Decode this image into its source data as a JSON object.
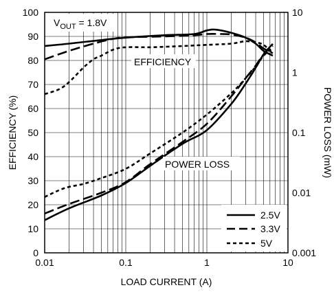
{
  "chart_data": {
    "type": "line",
    "annotation_main": "V",
    "annotation_sub": "OUT",
    "annotation_rest": " = 1.8V",
    "label_efficiency": "EFFICIENCY",
    "label_power_loss": "POWER LOSS",
    "xlabel": "LOAD CURRENT (A)",
    "ylabel_left": "EFFICIENCY (%)",
    "ylabel_right": "POWER LOSS (mW)",
    "xscale": "log",
    "xlim": [
      0.01,
      10
    ],
    "ylim_left": [
      0,
      100
    ],
    "yscale_right": "log",
    "ylim_right": [
      0.001,
      10
    ],
    "grid": true,
    "legend_position": "bottom-right",
    "x_ticks": [
      "0.01",
      "0.1",
      "1",
      "10"
    ],
    "y_left_ticks": [
      "0",
      "10",
      "20",
      "30",
      "40",
      "50",
      "60",
      "70",
      "80",
      "90",
      "100"
    ],
    "y_right_ticks": [
      "0.001",
      "0.01",
      "0.1",
      "1",
      "10"
    ],
    "legend": [
      {
        "label": "2.5V",
        "style": "solid"
      },
      {
        "label": "3.3V",
        "style": "long-dash"
      },
      {
        "label": "5V",
        "style": "short-dash"
      }
    ],
    "series": [
      {
        "name": "2.5V",
        "quantity": "efficiency",
        "axis": "left",
        "style": "solid",
        "x": [
          0.01,
          0.02,
          0.05,
          0.1,
          0.3,
          0.7,
          1.0,
          1.3,
          2.0,
          3.0,
          4.0,
          5.0,
          6.5
        ],
        "y": [
          86,
          87,
          88.5,
          89.5,
          90.5,
          91,
          92.5,
          92.8,
          91.5,
          89.5,
          87,
          84,
          82
        ]
      },
      {
        "name": "3.3V",
        "quantity": "efficiency",
        "axis": "left",
        "style": "long-dash",
        "x": [
          0.01,
          0.02,
          0.04,
          0.07,
          0.1,
          0.3,
          0.7,
          1.0,
          1.5,
          2.0,
          3.0,
          4.0,
          5.0,
          6.5
        ],
        "y": [
          80.5,
          84,
          87,
          89,
          89.6,
          90,
          90.5,
          91,
          91,
          90.8,
          89.5,
          87.5,
          85,
          83
        ]
      },
      {
        "name": "5V",
        "quantity": "efficiency",
        "axis": "left",
        "style": "short-dash",
        "x": [
          0.01,
          0.015,
          0.02,
          0.03,
          0.04,
          0.05,
          0.07,
          0.1,
          0.2,
          0.5,
          1.0,
          2.0,
          3.0,
          4.0,
          5.0,
          6.5
        ],
        "y": [
          66,
          68,
          71,
          77,
          80.5,
          82,
          84.5,
          85.5,
          85.5,
          86,
          86.5,
          87,
          88,
          87.5,
          86.5,
          83
        ]
      },
      {
        "name": "2.5V",
        "quantity": "power loss",
        "axis": "right",
        "style": "solid",
        "x": [
          0.01,
          0.02,
          0.05,
          0.1,
          0.2,
          0.5,
          1.0,
          2.0,
          3.0,
          4.0,
          5.0,
          6.5
        ],
        "y": [
          0.0035,
          0.0055,
          0.009,
          0.0145,
          0.028,
          0.065,
          0.11,
          0.3,
          0.65,
          1.2,
          2.0,
          3.0
        ]
      },
      {
        "name": "3.3V",
        "quantity": "power loss",
        "axis": "right",
        "style": "long-dash",
        "x": [
          0.01,
          0.02,
          0.05,
          0.1,
          0.2,
          0.5,
          1.0,
          2.0,
          3.0,
          4.0,
          5.0,
          6.5
        ],
        "y": [
          0.0045,
          0.0065,
          0.01,
          0.015,
          0.03,
          0.07,
          0.14,
          0.4,
          0.8,
          1.3,
          2.0,
          2.8
        ]
      },
      {
        "name": "5V",
        "quantity": "power loss",
        "axis": "right",
        "style": "short-dash",
        "x": [
          0.01,
          0.015,
          0.02,
          0.03,
          0.05,
          0.1,
          0.2,
          0.5,
          1.0,
          2.0,
          3.0,
          4.0,
          5.0,
          6.5
        ],
        "y": [
          0.0085,
          0.011,
          0.0125,
          0.014,
          0.0175,
          0.025,
          0.045,
          0.1,
          0.2,
          0.45,
          0.8,
          1.25,
          1.9,
          2.6
        ]
      }
    ]
  }
}
